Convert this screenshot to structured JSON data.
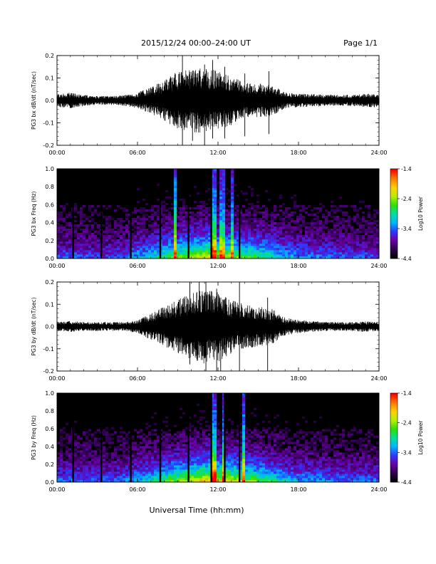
{
  "header": {
    "title": "2015/12/24  00:00–24:00 UT",
    "page": "Page 1/1"
  },
  "footer": {
    "xlabel": "Universal Time (hh:mm)"
  },
  "colors": {
    "trace": "#000000",
    "background": "#ffffff",
    "colormap": [
      "#000000",
      "#2d004b",
      "#6a00a8",
      "#2a3bff",
      "#00b4ff",
      "#00e0a0",
      "#30e000",
      "#b8ef00",
      "#ffd000",
      "#ff7a00",
      "#ff0000"
    ]
  },
  "chart_data": [
    {
      "id": "bx_timeseries",
      "type": "line",
      "ylabel": "PG3 bx dB/dt (nT/sec)",
      "xlim": [
        "00:00",
        "24:00"
      ],
      "ylim": [
        -0.2,
        0.2
      ],
      "xticks": [
        "00:00",
        "06:00",
        "12:00",
        "18:00",
        "24:00"
      ],
      "yticks": [
        "-0.2",
        "-0.1",
        "0.0",
        "0.1",
        "0.2"
      ],
      "envelope": {
        "x_hours": [
          0,
          1,
          2,
          3,
          4,
          5,
          6,
          7,
          8,
          9,
          10,
          11,
          12,
          13,
          14,
          15,
          16,
          17,
          18,
          19,
          20,
          21,
          22,
          23,
          24
        ],
        "amplitude": [
          0.03,
          0.035,
          0.025,
          0.02,
          0.02,
          0.025,
          0.035,
          0.06,
          0.09,
          0.13,
          0.14,
          0.15,
          0.13,
          0.11,
          0.08,
          0.08,
          0.07,
          0.035,
          0.03,
          0.03,
          0.025,
          0.025,
          0.025,
          0.03,
          0.03
        ]
      },
      "spikes": [
        {
          "t": 9.35,
          "max": 0.22,
          "min": -0.21
        },
        {
          "t": 10.1,
          "max": 0.12,
          "min": -0.18
        },
        {
          "t": 11.0,
          "max": 0.16,
          "min": -0.21
        },
        {
          "t": 11.6,
          "max": 0.18,
          "min": -0.17
        },
        {
          "t": 12.5,
          "max": 0.15,
          "min": -0.17
        },
        {
          "t": 14.0,
          "max": 0.12,
          "min": -0.16
        },
        {
          "t": 15.8,
          "max": 0.13,
          "min": -0.15
        }
      ]
    },
    {
      "id": "bx_spectrogram",
      "type": "heatmap",
      "ylabel": "PG3 bx Freq (Hz)",
      "colorbar_label": "Log10 Power",
      "colorbar_ticks": [
        "-1.4",
        "-2.4",
        "-3.4",
        "-4.4"
      ],
      "clim": [
        -4.4,
        -1.4
      ],
      "xlim": [
        "00:00",
        "24:00"
      ],
      "ylim": [
        0.0,
        1.0
      ],
      "xticks": [
        "00:00",
        "06:00",
        "12:00",
        "18:00",
        "24:00"
      ],
      "yticks": [
        "0.0",
        "0.2",
        "0.4",
        "0.6",
        "0.8",
        "1.0"
      ],
      "activity_hours": [
        0,
        1,
        2,
        3,
        4,
        5,
        6,
        7,
        8,
        9,
        10,
        11,
        12,
        13,
        14,
        15,
        16,
        17,
        18,
        19,
        20,
        21,
        22,
        23,
        24
      ],
      "activity_level": [
        0.28,
        0.3,
        0.27,
        0.26,
        0.26,
        0.3,
        0.38,
        0.45,
        0.55,
        0.62,
        0.68,
        0.75,
        0.72,
        0.68,
        0.6,
        0.58,
        0.5,
        0.4,
        0.36,
        0.34,
        0.32,
        0.3,
        0.28,
        0.28,
        0.27
      ],
      "gap_hours": [
        1.2,
        3.3,
        5.5,
        7.7,
        9.8,
        11.5,
        13.6
      ],
      "bright_lines": [
        {
          "t": 8.8,
          "intensity": 0.8
        },
        {
          "t": 11.7,
          "intensity": 0.7
        },
        {
          "t": 12.3,
          "intensity": 0.6
        },
        {
          "t": 13.1,
          "intensity": 0.6
        }
      ]
    },
    {
      "id": "by_timeseries",
      "type": "line",
      "ylabel": "PG3 by dB/dt (nT/sec)",
      "xlim": [
        "00:00",
        "24:00"
      ],
      "ylim": [
        -0.2,
        0.2
      ],
      "xticks": [
        "00:00",
        "06:00",
        "12:00",
        "18:00",
        "24:00"
      ],
      "yticks": [
        "-0.2",
        "-0.1",
        "0.0",
        "0.1",
        "0.2"
      ],
      "envelope": {
        "x_hours": [
          0,
          1,
          2,
          3,
          4,
          5,
          6,
          7,
          8,
          9,
          10,
          11,
          12,
          13,
          14,
          15,
          16,
          17,
          18,
          19,
          20,
          21,
          22,
          23,
          24
        ],
        "amplitude": [
          0.02,
          0.025,
          0.02,
          0.02,
          0.02,
          0.02,
          0.03,
          0.06,
          0.09,
          0.12,
          0.15,
          0.17,
          0.16,
          0.12,
          0.1,
          0.09,
          0.08,
          0.04,
          0.03,
          0.025,
          0.02,
          0.02,
          0.02,
          0.025,
          0.02
        ]
      },
      "spikes": [
        {
          "t": 9.9,
          "max": 0.21,
          "min": -0.17
        },
        {
          "t": 10.6,
          "max": 0.2,
          "min": -0.14
        },
        {
          "t": 11.1,
          "max": 0.21,
          "min": -0.21
        },
        {
          "t": 11.9,
          "max": 0.17,
          "min": -0.2
        },
        {
          "t": 12.2,
          "max": 0.1,
          "min": -0.21
        },
        {
          "t": 13.6,
          "max": 0.2,
          "min": -0.21
        },
        {
          "t": 15.7,
          "max": 0.13,
          "min": -0.21
        }
      ]
    },
    {
      "id": "by_spectrogram",
      "type": "heatmap",
      "ylabel": "PG3 by Freq (Hz)",
      "colorbar_label": "Log10 Power",
      "colorbar_ticks": [
        "-1.4",
        "-2.4",
        "-3.4",
        "-4.4"
      ],
      "clim": [
        -4.4,
        -1.4
      ],
      "xlim": [
        "00:00",
        "24:00"
      ],
      "ylim": [
        0.0,
        1.0
      ],
      "xticks": [
        "00:00",
        "06:00",
        "12:00",
        "18:00",
        "24:00"
      ],
      "yticks": [
        "0.0",
        "0.2",
        "0.4",
        "0.6",
        "0.8",
        "1.0"
      ],
      "activity_hours": [
        0,
        1,
        2,
        3,
        4,
        5,
        6,
        7,
        8,
        9,
        10,
        11,
        12,
        13,
        14,
        15,
        16,
        17,
        18,
        19,
        20,
        21,
        22,
        23,
        24
      ],
      "activity_level": [
        0.3,
        0.32,
        0.3,
        0.3,
        0.3,
        0.32,
        0.4,
        0.48,
        0.58,
        0.65,
        0.72,
        0.8,
        0.78,
        0.74,
        0.66,
        0.6,
        0.52,
        0.44,
        0.38,
        0.36,
        0.34,
        0.32,
        0.3,
        0.3,
        0.3
      ],
      "gap_hours": [
        1.2,
        3.3,
        5.5,
        7.7,
        9.8,
        11.5,
        12.5,
        13.6
      ],
      "bright_lines": [
        {
          "t": 11.7,
          "intensity": 0.7
        },
        {
          "t": 12.4,
          "intensity": 0.6
        },
        {
          "t": 13.9,
          "intensity": 0.7
        }
      ]
    }
  ]
}
